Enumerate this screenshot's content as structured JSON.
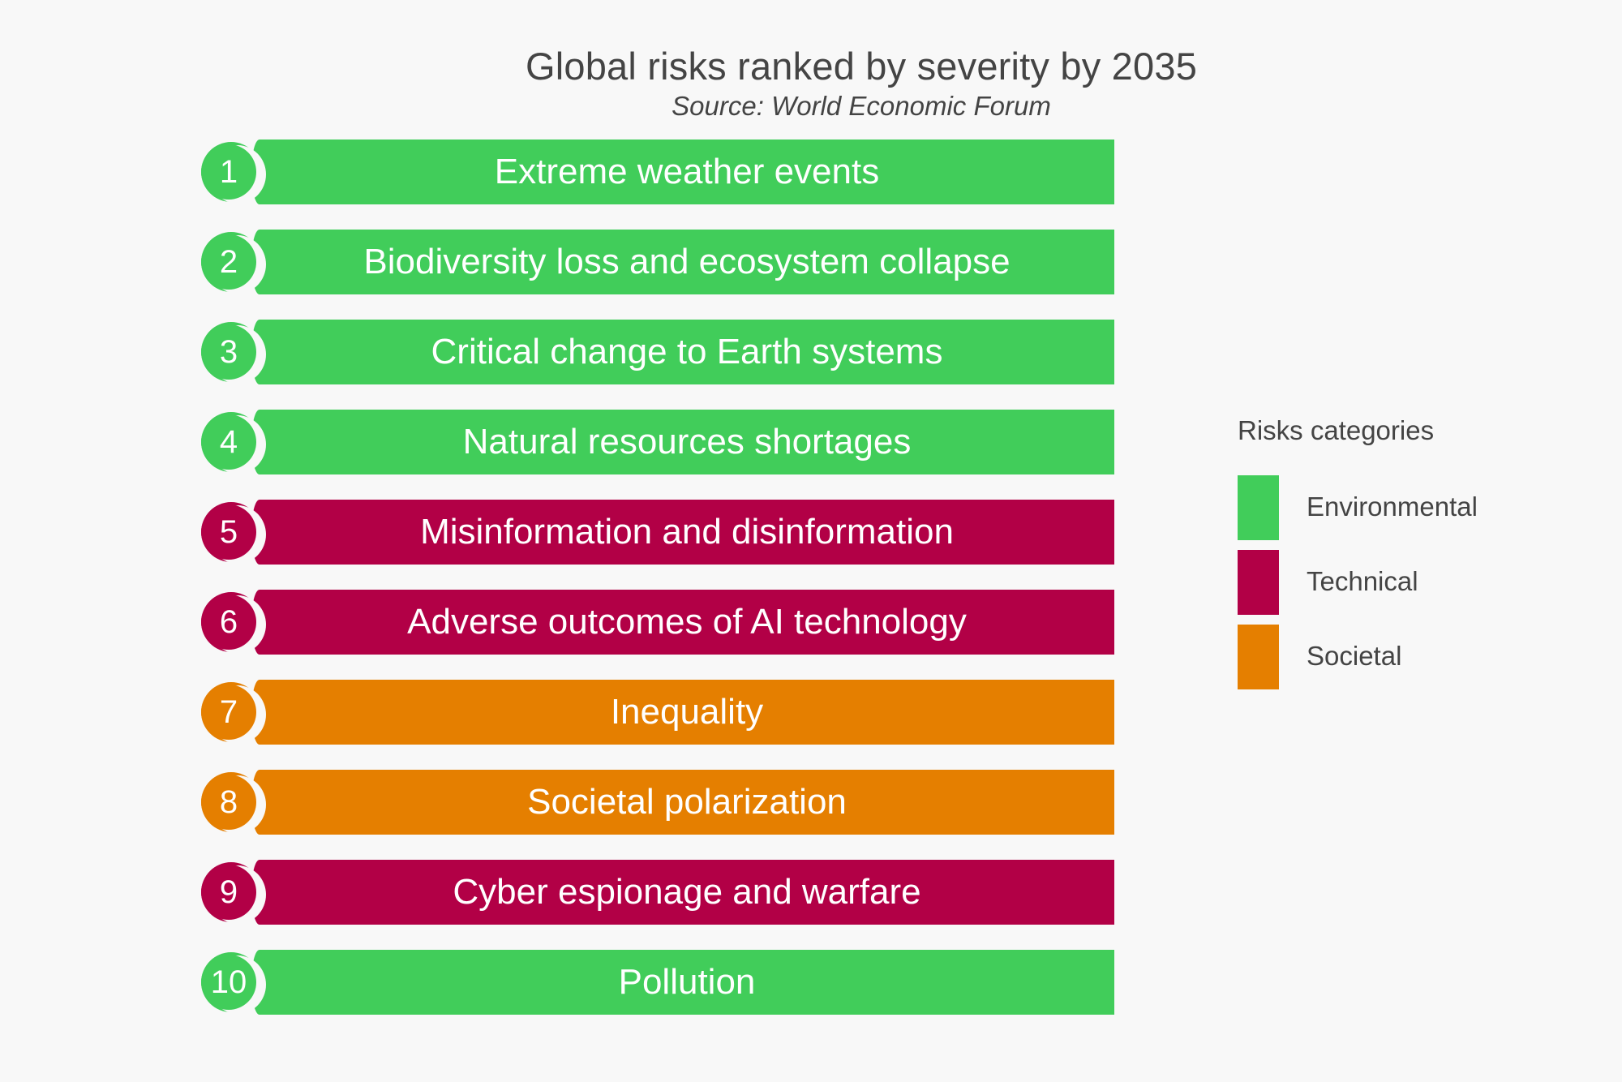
{
  "header": {
    "title": "Global risks ranked by severity by 2035",
    "subtitle": "Source: World Economic Forum"
  },
  "categories": {
    "environmental": {
      "label": "Environmental",
      "color": "#41cd5a"
    },
    "technical": {
      "label": "Technical",
      "color": "#b20046"
    },
    "societal": {
      "label": "Societal",
      "color": "#e57f00"
    }
  },
  "risks": [
    {
      "rank": "1",
      "label": "Extreme weather events",
      "category": "environmental"
    },
    {
      "rank": "2",
      "label": "Biodiversity loss and ecosystem collapse",
      "category": "environmental"
    },
    {
      "rank": "3",
      "label": "Critical change to Earth systems",
      "category": "environmental"
    },
    {
      "rank": "4",
      "label": "Natural resources shortages",
      "category": "environmental"
    },
    {
      "rank": "5",
      "label": "Misinformation and disinformation",
      "category": "technical"
    },
    {
      "rank": "6",
      "label": "Adverse outcomes of AI technology",
      "category": "technical"
    },
    {
      "rank": "7",
      "label": "Inequality",
      "category": "societal"
    },
    {
      "rank": "8",
      "label": "Societal polarization",
      "category": "societal"
    },
    {
      "rank": "9",
      "label": "Cyber espionage and warfare",
      "category": "technical"
    },
    {
      "rank": "10",
      "label": "Pollution",
      "category": "environmental"
    }
  ],
  "legend": {
    "title": "Risks categories",
    "items": [
      {
        "label": "Environmental",
        "category": "environmental"
      },
      {
        "label": "Technical",
        "category": "technical"
      },
      {
        "label": "Societal",
        "category": "societal"
      }
    ]
  }
}
